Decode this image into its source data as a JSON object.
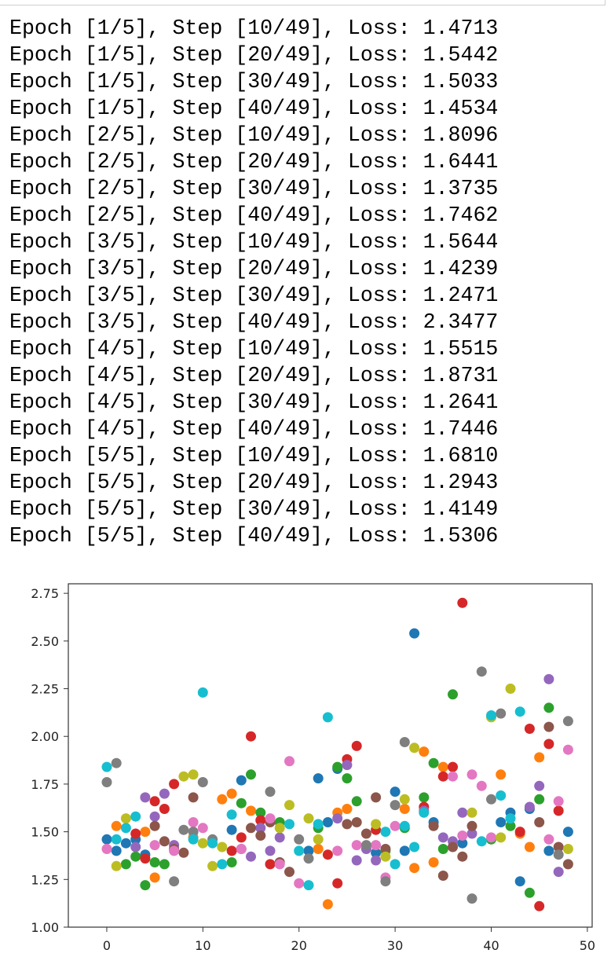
{
  "log_lines": [
    "Epoch [1/5], Step [10/49], Loss: 1.4713",
    "Epoch [1/5], Step [20/49], Loss: 1.5442",
    "Epoch [1/5], Step [30/49], Loss: 1.5033",
    "Epoch [1/5], Step [40/49], Loss: 1.4534",
    "Epoch [2/5], Step [10/49], Loss: 1.8096",
    "Epoch [2/5], Step [20/49], Loss: 1.6441",
    "Epoch [2/5], Step [30/49], Loss: 1.3735",
    "Epoch [2/5], Step [40/49], Loss: 1.7462",
    "Epoch [3/5], Step [10/49], Loss: 1.5644",
    "Epoch [3/5], Step [20/49], Loss: 1.4239",
    "Epoch [3/5], Step [30/49], Loss: 1.2471",
    "Epoch [3/5], Step [40/49], Loss: 2.3477",
    "Epoch [4/5], Step [10/49], Loss: 1.5515",
    "Epoch [4/5], Step [20/49], Loss: 1.8731",
    "Epoch [4/5], Step [30/49], Loss: 1.2641",
    "Epoch [4/5], Step [40/49], Loss: 1.7446",
    "Epoch [5/5], Step [10/49], Loss: 1.6810",
    "Epoch [5/5], Step [20/49], Loss: 1.2943",
    "Epoch [5/5], Step [30/49], Loss: 1.4149",
    "Epoch [5/5], Step [40/49], Loss: 1.5306"
  ],
  "chart_data": {
    "type": "scatter",
    "title": "",
    "xlabel": "",
    "ylabel": "",
    "xlim": [
      -4,
      50.5
    ],
    "ylim": [
      1.0,
      2.8
    ],
    "xticks": [
      0,
      10,
      20,
      30,
      40,
      50
    ],
    "xtick_labels": [
      "0",
      "10",
      "20",
      "30",
      "40",
      "50"
    ],
    "yticks": [
      1.0,
      1.25,
      1.5,
      1.75,
      2.0,
      2.25,
      2.5,
      2.75
    ],
    "ytick_labels": [
      "1.00",
      "1.25",
      "1.50",
      "1.75",
      "2.00",
      "2.25",
      "2.50",
      "2.75"
    ],
    "grid": false,
    "legend": "none",
    "series": [
      {
        "color": "#1f77b4",
        "points": [
          [
            0,
            1.46
          ],
          [
            1,
            1.4
          ],
          [
            2,
            1.44
          ],
          [
            3,
            1.46
          ],
          [
            4,
            1.38
          ],
          [
            13,
            1.51
          ],
          [
            14,
            1.77
          ],
          [
            21,
            1.4
          ],
          [
            22,
            1.78
          ],
          [
            23,
            1.55
          ],
          [
            24,
            1.83
          ],
          [
            28,
            1.39
          ],
          [
            30,
            1.71
          ],
          [
            31,
            1.4
          ],
          [
            32,
            2.54
          ],
          [
            34,
            1.55
          ],
          [
            37,
            1.44
          ],
          [
            41,
            1.55
          ],
          [
            42,
            1.6
          ],
          [
            43,
            1.24
          ],
          [
            44,
            1.62
          ],
          [
            46,
            1.4
          ],
          [
            48,
            1.5
          ]
        ]
      },
      {
        "color": "#ff7f0e",
        "points": [
          [
            1,
            1.53
          ],
          [
            4,
            1.5
          ],
          [
            5,
            1.26
          ],
          [
            9,
            1.47
          ],
          [
            12,
            1.67
          ],
          [
            13,
            1.7
          ],
          [
            15,
            1.61
          ],
          [
            16,
            1.56
          ],
          [
            22,
            1.41
          ],
          [
            23,
            1.12
          ],
          [
            24,
            1.6
          ],
          [
            25,
            1.62
          ],
          [
            31,
            1.62
          ],
          [
            32,
            1.31
          ],
          [
            33,
            1.92
          ],
          [
            34,
            1.34
          ],
          [
            35,
            1.84
          ],
          [
            41,
            1.8
          ],
          [
            43,
            1.49
          ],
          [
            44,
            1.42
          ],
          [
            45,
            1.89
          ]
        ]
      },
      {
        "color": "#2ca02c",
        "points": [
          [
            2,
            1.33
          ],
          [
            3,
            1.37
          ],
          [
            4,
            1.22
          ],
          [
            5,
            1.34
          ],
          [
            6,
            1.33
          ],
          [
            13,
            1.34
          ],
          [
            14,
            1.65
          ],
          [
            15,
            1.8
          ],
          [
            16,
            1.6
          ],
          [
            18,
            1.55
          ],
          [
            22,
            1.52
          ],
          [
            24,
            1.84
          ],
          [
            25,
            1.78
          ],
          [
            26,
            1.66
          ],
          [
            29,
            1.4
          ],
          [
            31,
            1.52
          ],
          [
            33,
            1.68
          ],
          [
            34,
            1.86
          ],
          [
            35,
            1.41
          ],
          [
            36,
            2.22
          ],
          [
            40,
            1.46
          ],
          [
            42,
            1.53
          ],
          [
            44,
            1.18
          ],
          [
            45,
            1.67
          ],
          [
            46,
            2.15
          ]
        ]
      },
      {
        "color": "#d62728",
        "points": [
          [
            3,
            1.49
          ],
          [
            4,
            1.36
          ],
          [
            5,
            1.66
          ],
          [
            6,
            1.62
          ],
          [
            7,
            1.75
          ],
          [
            13,
            1.4
          ],
          [
            14,
            1.47
          ],
          [
            15,
            2.0
          ],
          [
            16,
            1.56
          ],
          [
            17,
            1.33
          ],
          [
            23,
            1.38
          ],
          [
            24,
            1.23
          ],
          [
            25,
            1.88
          ],
          [
            26,
            1.95
          ],
          [
            28,
            1.51
          ],
          [
            33,
            1.63
          ],
          [
            35,
            1.79
          ],
          [
            36,
            1.84
          ],
          [
            37,
            2.7
          ],
          [
            43,
            1.5
          ],
          [
            44,
            2.04
          ],
          [
            45,
            1.11
          ],
          [
            46,
            1.96
          ],
          [
            47,
            1.61
          ]
        ]
      },
      {
        "color": "#9467bd",
        "points": [
          [
            3,
            1.42
          ],
          [
            4,
            1.68
          ],
          [
            5,
            1.58
          ],
          [
            6,
            1.7
          ],
          [
            7,
            1.43
          ],
          [
            14,
            1.41
          ],
          [
            15,
            1.37
          ],
          [
            16,
            1.52
          ],
          [
            17,
            1.4
          ],
          [
            18,
            1.47
          ],
          [
            24,
            1.57
          ],
          [
            25,
            1.85
          ],
          [
            26,
            1.35
          ],
          [
            27,
            1.41
          ],
          [
            28,
            1.35
          ],
          [
            33,
            1.61
          ],
          [
            35,
            1.47
          ],
          [
            36,
            1.45
          ],
          [
            37,
            1.6
          ],
          [
            38,
            1.49
          ],
          [
            44,
            1.63
          ],
          [
            45,
            1.74
          ],
          [
            46,
            2.3
          ],
          [
            47,
            1.29
          ]
        ]
      },
      {
        "color": "#8c564b",
        "points": [
          [
            5,
            1.53
          ],
          [
            6,
            1.45
          ],
          [
            7,
            1.41
          ],
          [
            8,
            1.39
          ],
          [
            9,
            1.68
          ],
          [
            15,
            1.52
          ],
          [
            16,
            1.48
          ],
          [
            17,
            1.55
          ],
          [
            18,
            1.34
          ],
          [
            19,
            1.29
          ],
          [
            25,
            1.54
          ],
          [
            26,
            1.55
          ],
          [
            27,
            1.49
          ],
          [
            28,
            1.68
          ],
          [
            29,
            1.41
          ],
          [
            34,
            1.53
          ],
          [
            35,
            1.27
          ],
          [
            36,
            1.42
          ],
          [
            37,
            1.37
          ],
          [
            38,
            1.53
          ],
          [
            45,
            1.55
          ],
          [
            46,
            2.05
          ],
          [
            47,
            1.42
          ],
          [
            48,
            1.33
          ]
        ]
      },
      {
        "color": "#e377c2",
        "points": [
          [
            0,
            1.41
          ],
          [
            5,
            1.43
          ],
          [
            7,
            1.4
          ],
          [
            9,
            1.55
          ],
          [
            10,
            1.52
          ],
          [
            14,
            1.41
          ],
          [
            17,
            1.57
          ],
          [
            18,
            1.33
          ],
          [
            19,
            1.87
          ],
          [
            20,
            1.23
          ],
          [
            24,
            1.4
          ],
          [
            26,
            1.43
          ],
          [
            28,
            1.43
          ],
          [
            29,
            1.26
          ],
          [
            30,
            1.53
          ],
          [
            36,
            1.79
          ],
          [
            37,
            1.48
          ],
          [
            38,
            1.8
          ],
          [
            39,
            1.74
          ],
          [
            40,
            1.47
          ],
          [
            46,
            1.46
          ],
          [
            47,
            1.66
          ],
          [
            48,
            1.93
          ]
        ]
      },
      {
        "color": "#7f7f7f",
        "points": [
          [
            0,
            1.76
          ],
          [
            1,
            1.86
          ],
          [
            7,
            1.24
          ],
          [
            8,
            1.51
          ],
          [
            9,
            1.5
          ],
          [
            10,
            1.76
          ],
          [
            11,
            1.46
          ],
          [
            17,
            1.71
          ],
          [
            20,
            1.46
          ],
          [
            21,
            1.36
          ],
          [
            27,
            1.43
          ],
          [
            29,
            1.24
          ],
          [
            30,
            1.64
          ],
          [
            31,
            1.97
          ],
          [
            38,
            1.15
          ],
          [
            39,
            2.34
          ],
          [
            40,
            1.67
          ],
          [
            41,
            2.12
          ],
          [
            47,
            1.38
          ],
          [
            48,
            2.08
          ]
        ]
      },
      {
        "color": "#bcbd22",
        "points": [
          [
            1,
            1.32
          ],
          [
            2,
            1.57
          ],
          [
            8,
            1.79
          ],
          [
            9,
            1.8
          ],
          [
            10,
            1.44
          ],
          [
            11,
            1.32
          ],
          [
            12,
            1.42
          ],
          [
            18,
            1.52
          ],
          [
            19,
            1.64
          ],
          [
            21,
            1.57
          ],
          [
            22,
            1.46
          ],
          [
            28,
            1.54
          ],
          [
            29,
            1.37
          ],
          [
            31,
            1.67
          ],
          [
            32,
            1.94
          ],
          [
            38,
            1.6
          ],
          [
            40,
            2.1
          ],
          [
            41,
            1.47
          ],
          [
            42,
            2.25
          ],
          [
            48,
            1.41
          ]
        ]
      },
      {
        "color": "#17becf",
        "points": [
          [
            0,
            1.84
          ],
          [
            1,
            1.46
          ],
          [
            2,
            1.52
          ],
          [
            3,
            1.58
          ],
          [
            9,
            1.46
          ],
          [
            10,
            2.23
          ],
          [
            11,
            1.44
          ],
          [
            12,
            1.33
          ],
          [
            13,
            1.59
          ],
          [
            19,
            1.54
          ],
          [
            20,
            1.4
          ],
          [
            21,
            1.22
          ],
          [
            22,
            1.54
          ],
          [
            23,
            2.1
          ],
          [
            29,
            1.5
          ],
          [
            30,
            1.33
          ],
          [
            31,
            1.53
          ],
          [
            32,
            1.42
          ],
          [
            33,
            1.6
          ],
          [
            39,
            1.45
          ],
          [
            40,
            2.11
          ],
          [
            41,
            1.69
          ],
          [
            42,
            1.57
          ],
          [
            43,
            2.13
          ]
        ]
      }
    ]
  }
}
